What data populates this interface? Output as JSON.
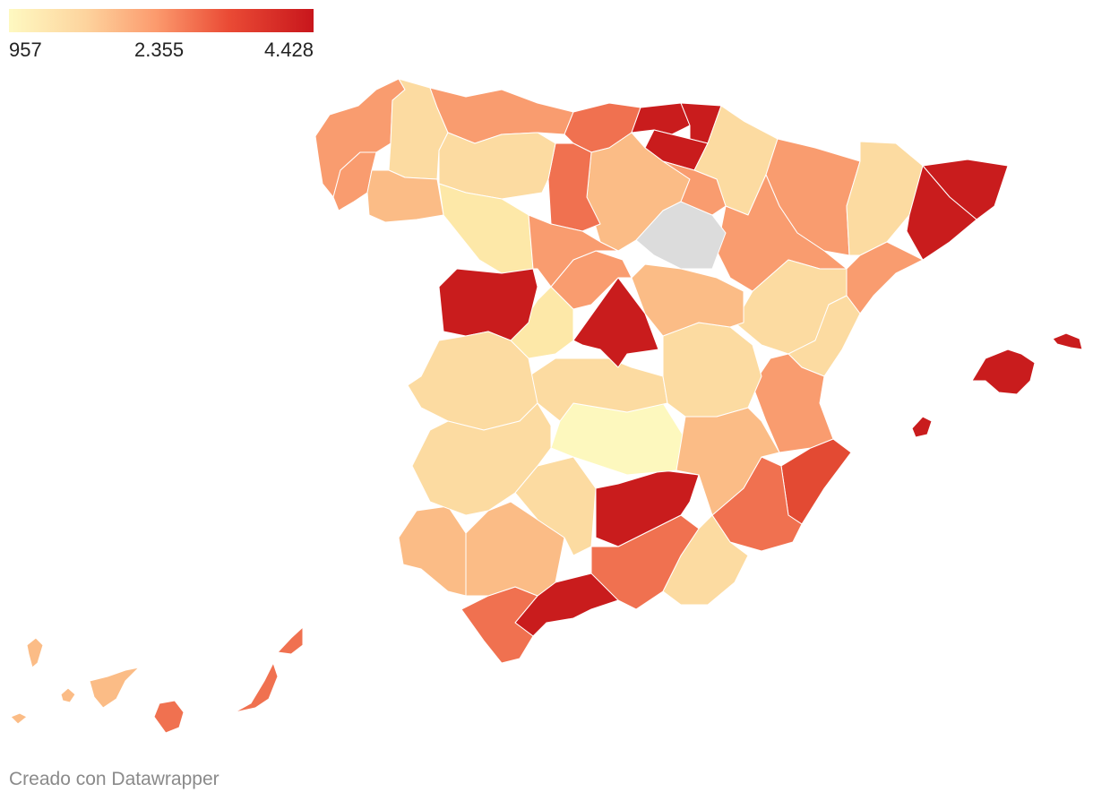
{
  "legend": {
    "min_label": "957",
    "mid_label": "2.355",
    "max_label": "4.428",
    "colors": [
      "#fef9c1",
      "#fdd49e",
      "#fc9b6e",
      "#ea4b35",
      "#c8161c"
    ]
  },
  "footer": {
    "credit": "Creado con Datawrapper"
  },
  "map": {
    "no_data_color": "#dcdcdc",
    "regions": [
      {
        "name": "A Coruña",
        "level": "mid-low"
      },
      {
        "name": "Lugo",
        "level": "low"
      },
      {
        "name": "Asturias",
        "level": "mid-low"
      },
      {
        "name": "Cantabria",
        "level": "mid"
      },
      {
        "name": "Bizkaia",
        "level": "high"
      },
      {
        "name": "Gipuzkoa",
        "level": "high"
      },
      {
        "name": "Álava",
        "level": "high"
      },
      {
        "name": "Navarra",
        "level": "low"
      },
      {
        "name": "Huesca",
        "level": "mid-low"
      },
      {
        "name": "Lleida",
        "level": "low"
      },
      {
        "name": "Girona",
        "level": "high"
      },
      {
        "name": "Barcelona",
        "level": "high"
      },
      {
        "name": "Tarragona",
        "level": "mid-low"
      },
      {
        "name": "Zaragoza",
        "level": "mid-low"
      },
      {
        "name": "Teruel",
        "level": "low"
      },
      {
        "name": "Castellón",
        "level": "low"
      },
      {
        "name": "Valencia",
        "level": "mid-low"
      },
      {
        "name": "Alicante",
        "level": "mid-high"
      },
      {
        "name": "Murcia",
        "level": "mid"
      },
      {
        "name": "Almería",
        "level": "low"
      },
      {
        "name": "Granada",
        "level": "mid"
      },
      {
        "name": "Málaga",
        "level": "high"
      },
      {
        "name": "Cádiz",
        "level": "mid"
      },
      {
        "name": "Huelva",
        "level": "low-mid"
      },
      {
        "name": "Sevilla",
        "level": "low-mid"
      },
      {
        "name": "Córdoba",
        "level": "low"
      },
      {
        "name": "Jaén",
        "level": "high"
      },
      {
        "name": "Ciudad Real",
        "level": "lowest"
      },
      {
        "name": "Toledo",
        "level": "low"
      },
      {
        "name": "Cuenca",
        "level": "low"
      },
      {
        "name": "Albacete",
        "level": "low-mid"
      },
      {
        "name": "Madrid",
        "level": "high"
      },
      {
        "name": "Ávila",
        "level": "very-low"
      },
      {
        "name": "Segovia",
        "level": "mid-low"
      },
      {
        "name": "Guadalajara",
        "level": "low-mid"
      },
      {
        "name": "Soria",
        "level": "no-data"
      },
      {
        "name": "Burgos",
        "level": "low-mid"
      },
      {
        "name": "Palencia",
        "level": "mid"
      },
      {
        "name": "León",
        "level": "low"
      },
      {
        "name": "Zamora",
        "level": "very-low"
      },
      {
        "name": "Salamanca",
        "level": "high"
      },
      {
        "name": "Valladolid",
        "level": "mid-low"
      },
      {
        "name": "Cáceres",
        "level": "low"
      },
      {
        "name": "Badajoz",
        "level": "low"
      },
      {
        "name": "Pontevedra",
        "level": "mid-low"
      },
      {
        "name": "Ourense",
        "level": "low-mid"
      },
      {
        "name": "La Rioja",
        "level": "mid-low"
      },
      {
        "name": "Mallorca",
        "level": "high"
      },
      {
        "name": "Menorca",
        "level": "high"
      },
      {
        "name": "Ibiza",
        "level": "high"
      },
      {
        "name": "Lanzarote",
        "level": "mid"
      },
      {
        "name": "Fuerteventura",
        "level": "mid"
      },
      {
        "name": "Gran Canaria",
        "level": "mid"
      },
      {
        "name": "Tenerife",
        "level": "low-mid"
      },
      {
        "name": "La Palma",
        "level": "low-mid"
      },
      {
        "name": "La Gomera",
        "level": "low-mid"
      },
      {
        "name": "El Hierro",
        "level": "low-mid"
      }
    ]
  }
}
